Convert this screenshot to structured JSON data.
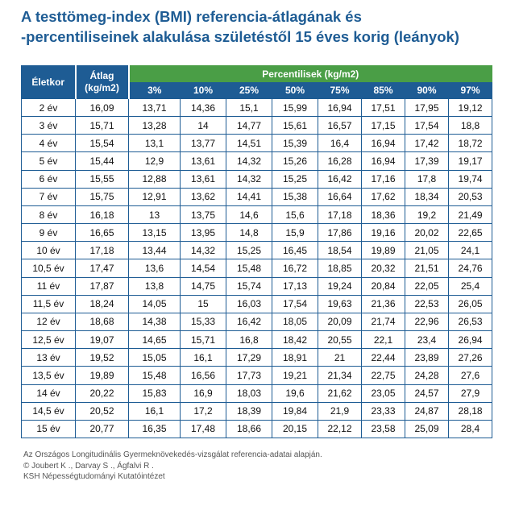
{
  "title": {
    "line1": "A testtömeg-index (BMI) referencia-átlagának és",
    "line2": "-percentiliseinek alakulása születéstől 15 éves korig (leányok)"
  },
  "table": {
    "age_header": "Életkor",
    "mean_header_line1": "Átlag",
    "mean_header_line2": "(kg/m2)",
    "percentile_header": "Percentilisek (kg/m2)",
    "percentiles": [
      "3%",
      "10%",
      "25%",
      "50%",
      "75%",
      "85%",
      "90%",
      "97%"
    ],
    "rows": [
      {
        "age": "2 év",
        "mean": "16,09",
        "p": [
          "13,71",
          "14,36",
          "15,1",
          "15,99",
          "16,94",
          "17,51",
          "17,95",
          "19,12"
        ]
      },
      {
        "age": "3 év",
        "mean": "15,71",
        "p": [
          "13,28",
          "14",
          "14,77",
          "15,61",
          "16,57",
          "17,15",
          "17,54",
          "18,8"
        ]
      },
      {
        "age": "4 év",
        "mean": "15,54",
        "p": [
          "13,1",
          "13,77",
          "14,51",
          "15,39",
          "16,4",
          "16,94",
          "17,42",
          "18,72"
        ]
      },
      {
        "age": "5 év",
        "mean": "15,44",
        "p": [
          "12,9",
          "13,61",
          "14,32",
          "15,26",
          "16,28",
          "16,94",
          "17,39",
          "19,17"
        ]
      },
      {
        "age": "6 év",
        "mean": "15,55",
        "p": [
          "12,88",
          "13,61",
          "14,32",
          "15,25",
          "16,42",
          "17,16",
          "17,8",
          "19,74"
        ]
      },
      {
        "age": "7 év",
        "mean": "15,75",
        "p": [
          "12,91",
          "13,62",
          "14,41",
          "15,38",
          "16,64",
          "17,62",
          "18,34",
          "20,53"
        ]
      },
      {
        "age": "8 év",
        "mean": "16,18",
        "p": [
          "13",
          "13,75",
          "14,6",
          "15,6",
          "17,18",
          "18,36",
          "19,2",
          "21,49"
        ]
      },
      {
        "age": "9 év",
        "mean": "16,65",
        "p": [
          "13,15",
          "13,95",
          "14,8",
          "15,9",
          "17,86",
          "19,16",
          "20,02",
          "22,65"
        ]
      },
      {
        "age": "10 év",
        "mean": "17,18",
        "p": [
          "13,44",
          "14,32",
          "15,25",
          "16,45",
          "18,54",
          "19,89",
          "21,05",
          "24,1"
        ]
      },
      {
        "age": "10,5 év",
        "mean": "17,47",
        "p": [
          "13,6",
          "14,54",
          "15,48",
          "16,72",
          "18,85",
          "20,32",
          "21,51",
          "24,76"
        ]
      },
      {
        "age": "11 év",
        "mean": "17,87",
        "p": [
          "13,8",
          "14,75",
          "15,74",
          "17,13",
          "19,24",
          "20,84",
          "22,05",
          "25,4"
        ]
      },
      {
        "age": "11,5 év",
        "mean": "18,24",
        "p": [
          "14,05",
          "15",
          "16,03",
          "17,54",
          "19,63",
          "21,36",
          "22,53",
          "26,05"
        ]
      },
      {
        "age": "12 év",
        "mean": "18,68",
        "p": [
          "14,38",
          "15,33",
          "16,42",
          "18,05",
          "20,09",
          "21,74",
          "22,96",
          "26,53"
        ]
      },
      {
        "age": "12,5 év",
        "mean": "19,07",
        "p": [
          "14,65",
          "15,71",
          "16,8",
          "18,42",
          "20,55",
          "22,1",
          "23,4",
          "26,94"
        ]
      },
      {
        "age": "13 év",
        "mean": "19,52",
        "p": [
          "15,05",
          "16,1",
          "17,29",
          "18,91",
          "21",
          "22,44",
          "23,89",
          "27,26"
        ]
      },
      {
        "age": "13,5 év",
        "mean": "19,89",
        "p": [
          "15,48",
          "16,56",
          "17,73",
          "19,21",
          "21,34",
          "22,75",
          "24,28",
          "27,6"
        ]
      },
      {
        "age": "14 év",
        "mean": "20,22",
        "p": [
          "15,83",
          "16,9",
          "18,03",
          "19,6",
          "21,62",
          "23,05",
          "24,57",
          "27,9"
        ]
      },
      {
        "age": "14,5 év",
        "mean": "20,52",
        "p": [
          "16,1",
          "17,2",
          "18,39",
          "19,84",
          "21,9",
          "23,33",
          "24,87",
          "28,18"
        ]
      },
      {
        "age": "15 év",
        "mean": "20,77",
        "p": [
          "16,35",
          "17,48",
          "18,66",
          "20,15",
          "22,12",
          "23,58",
          "25,09",
          "28,4"
        ]
      }
    ]
  },
  "footnote": {
    "line1": "Az Országos Longitudinális Gyermeknövekedés-vizsgálat referencia-adatai alapján.",
    "line2": "© Joubert K ., Darvay S ., Ágfalvi R .",
    "line3": "KSH Népességtudományi Kutatóintézet"
  },
  "colors": {
    "header_blue": "#1e5c94",
    "header_green": "#4a9e46"
  }
}
